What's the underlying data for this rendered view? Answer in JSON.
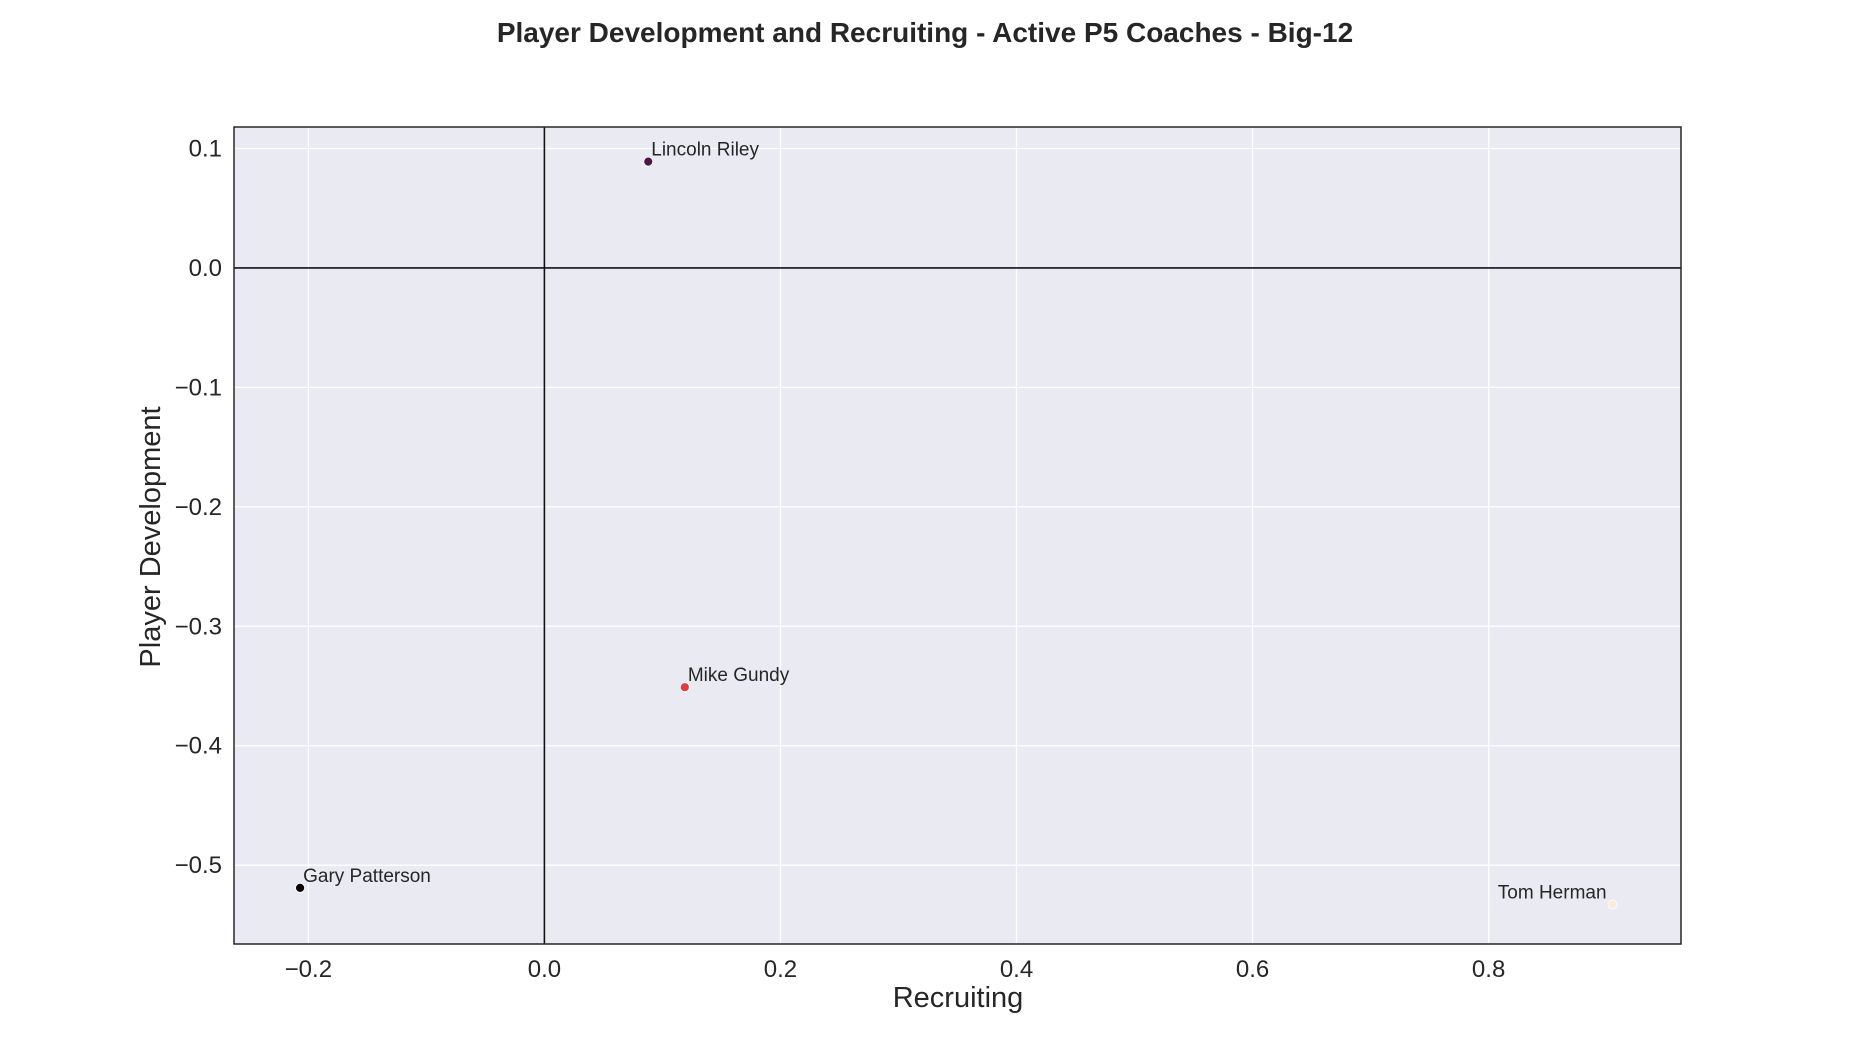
{
  "chart_data": {
    "type": "scatter",
    "title": "Player Development and Recruiting - Active P5 Coaches - Big-12",
    "xlabel": "Recruiting",
    "ylabel": "Player Development",
    "xlim": [
      -0.263,
      0.963
    ],
    "ylim": [
      -0.566,
      0.118
    ],
    "xticks": [
      -0.2,
      0.0,
      0.2,
      0.4,
      0.6,
      0.8
    ],
    "xtick_labels": [
      "−0.2",
      "0.0",
      "0.2",
      "0.4",
      "0.6",
      "0.8"
    ],
    "yticks": [
      0.1,
      0.0,
      -0.1,
      -0.2,
      -0.3,
      -0.4,
      -0.5
    ],
    "ytick_labels": [
      "0.1",
      "0.0",
      "−0.1",
      "−0.2",
      "−0.3",
      "−0.4",
      "−0.5"
    ],
    "reference_lines": {
      "x": 0,
      "y": 0
    },
    "grid": true,
    "background": "#eaeaf2",
    "points": [
      {
        "name": "Lincoln Riley",
        "x": 0.088,
        "y": 0.089,
        "color": "#4a1942",
        "label_side": "right"
      },
      {
        "name": "Mike Gundy",
        "x": 0.119,
        "y": -0.351,
        "color": "#e03a45",
        "label_side": "right"
      },
      {
        "name": "Gary Patterson",
        "x": -0.207,
        "y": -0.519,
        "color": "#0b0405",
        "label_side": "right"
      },
      {
        "name": "Tom Herman",
        "x": 0.905,
        "y": -0.533,
        "color": "#faebdd",
        "label_side": "left"
      }
    ]
  }
}
